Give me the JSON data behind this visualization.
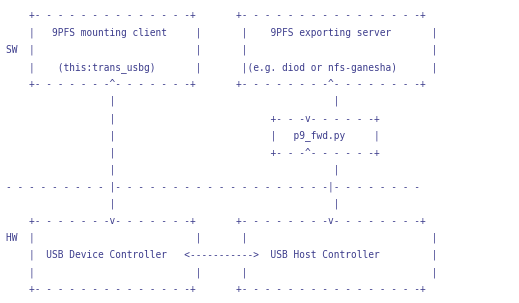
{
  "background_color": "#ffffff",
  "text_color": "#3c3c8c",
  "font_family": "monospace",
  "font_size": 6.85,
  "fig_width": 5.19,
  "fig_height": 3.03,
  "diagram": [
    "    +- - - - - - - - - - - - - -+       +- - - - - - - - - - - - - - - -+",
    "    |   9PFS mounting client     |       |    9PFS exporting server       |",
    "SW  |                            |       |                                |",
    "    |    (this:trans_usbg)       |       |(e.g. diod or nfs-ganesha)      |",
    "    +- - - - - - -^- - - - - - -+       +- - - - - - - -^- - - - - - - -+",
    "                  |                                      |",
    "                  |                           +- - -v- - - - - -+",
    "                  |                           |   p9_fwd.py     |",
    "                  |                           +- - -^- - - - - -+",
    "                  |                                      |",
    "- - - - - - - - - |- - - - - - - - - - - - - - - - - - -|- - - - - - - -",
    "                  |                                      |",
    "    +- - - - - - -v- - - - - - -+       +- - - - - - - -v- - - - - - - -+",
    "HW  |                            |       |                                |",
    "    |  USB Device Controller   <----------->  USB Host Controller         |",
    "    |                            |       |                                |",
    "    +- - - - - - - - - - - - - -+       +- - - - - - - - - - - - - - - -+"
  ]
}
